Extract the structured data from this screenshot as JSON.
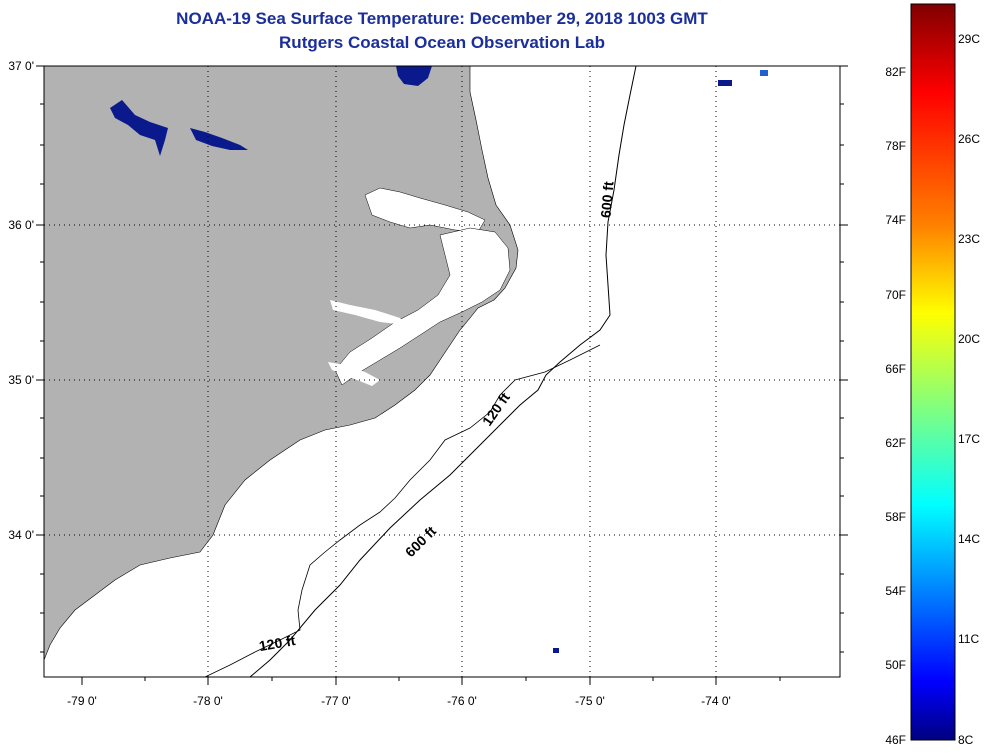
{
  "title": "NOAA-19 Sea Surface Temperature:  December 29, 2018 1003 GMT",
  "subtitle": "Rutgers Coastal Ocean Observation Lab",
  "map": {
    "lat_ticks": [
      "37 0'",
      "36 0'",
      "35 0'",
      "34 0'"
    ],
    "lon_ticks": [
      "-79 0'",
      "-78 0'",
      "-77 0'",
      "-76 0'",
      "-75 0'",
      "-74 0'"
    ],
    "contour_labels": [
      "600 ft",
      "120 ft",
      "600 ft",
      "120 ft"
    ],
    "colors": {
      "land": "#b2b2b2",
      "frame": "#000000",
      "grid": "#000000"
    }
  },
  "colorbar": {
    "f_labels": [
      "82F",
      "78F",
      "74F",
      "70F",
      "66F",
      "62F",
      "58F",
      "54F",
      "50F",
      "46F"
    ],
    "c_labels": [
      "29C",
      "26C",
      "23C",
      "20C",
      "17C",
      "14C",
      "11C",
      "8C"
    ],
    "gradient": [
      "#800000",
      "#ff0000",
      "#ff8000",
      "#ffff00",
      "#80ff80",
      "#00ffff",
      "#0080ff",
      "#0000ff",
      "#000080"
    ]
  }
}
